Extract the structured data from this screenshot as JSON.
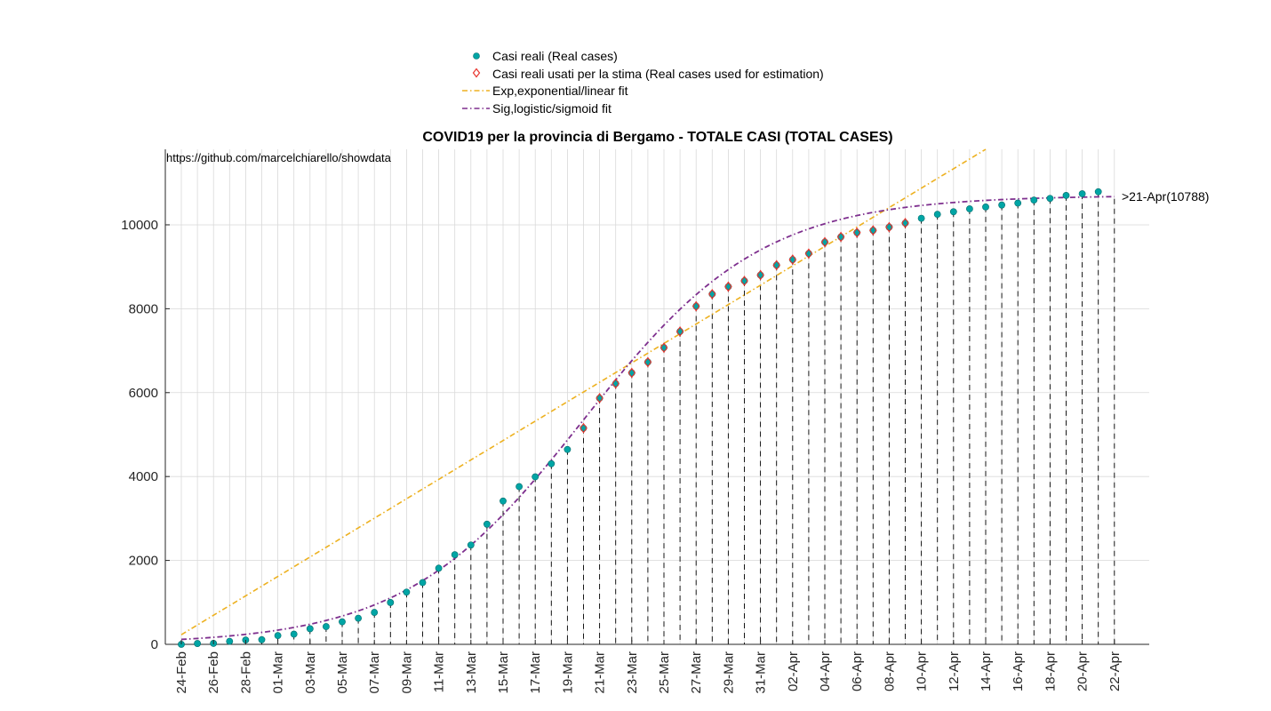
{
  "chart_data": {
    "type": "scatter",
    "title": "COVID19 per la provincia di Bergamo - TOTALE CASI (TOTAL CASES)",
    "source_text": "https://github.com/marcelchiarello/showdata",
    "xlabel": "",
    "ylabel": "",
    "ylim": [
      0,
      11800
    ],
    "y_ticks": [
      0,
      2000,
      4000,
      6000,
      8000,
      10000
    ],
    "x_tick_labels": [
      "24-Feb",
      "26-Feb",
      "28-Feb",
      "01-Mar",
      "03-Mar",
      "05-Mar",
      "07-Mar",
      "09-Mar",
      "11-Mar",
      "13-Mar",
      "15-Mar",
      "17-Mar",
      "19-Mar",
      "21-Mar",
      "23-Mar",
      "25-Mar",
      "27-Mar",
      "29-Mar",
      "31-Mar",
      "02-Apr",
      "04-Apr",
      "06-Apr",
      "08-Apr",
      "10-Apr",
      "12-Apr",
      "14-Apr",
      "16-Apr",
      "18-Apr",
      "20-Apr",
      "22-Apr"
    ],
    "dates": [
      "24-Feb",
      "25-Feb",
      "26-Feb",
      "27-Feb",
      "28-Feb",
      "29-Feb",
      "01-Mar",
      "02-Mar",
      "03-Mar",
      "04-Mar",
      "05-Mar",
      "06-Mar",
      "07-Mar",
      "08-Mar",
      "09-Mar",
      "10-Mar",
      "11-Mar",
      "12-Mar",
      "13-Mar",
      "14-Mar",
      "15-Mar",
      "16-Mar",
      "17-Mar",
      "18-Mar",
      "19-Mar",
      "20-Mar",
      "21-Mar",
      "22-Mar",
      "23-Mar",
      "24-Mar",
      "25-Mar",
      "26-Mar",
      "27-Mar",
      "28-Mar",
      "29-Mar",
      "30-Mar",
      "31-Mar",
      "01-Apr",
      "02-Apr",
      "03-Apr",
      "04-Apr",
      "05-Apr",
      "06-Apr",
      "07-Apr",
      "08-Apr",
      "09-Apr",
      "10-Apr",
      "11-Apr",
      "12-Apr",
      "13-Apr",
      "14-Apr",
      "15-Apr",
      "16-Apr",
      "17-Apr",
      "18-Apr",
      "19-Apr",
      "20-Apr",
      "21-Apr"
    ],
    "series": [
      {
        "name": "Casi reali (Real cases)",
        "marker": "circle",
        "color": "#00A5A5",
        "values": [
          0,
          20,
          23,
          72,
          103,
          110,
          209,
          243,
          372,
          423,
          537,
          623,
          761,
          997,
          1245,
          1472,
          1815,
          2136,
          2368,
          2864,
          3416,
          3760,
          3993,
          4305,
          4645,
          5154,
          5869,
          6216,
          6471,
          6728,
          7072,
          7458,
          8060,
          8349,
          8527,
          8664,
          8803,
          9039,
          9171,
          9315,
          9588,
          9712,
          9815,
          9868,
          9945,
          10042,
          10156,
          10251,
          10311,
          10380,
          10425,
          10472,
          10518,
          10590,
          10630,
          10700,
          10740,
          10788
        ]
      },
      {
        "name": "Casi reali usati per la stima (Real cases used for estimation)",
        "marker": "diamond",
        "color": "#E8352E",
        "values": [
          null,
          null,
          null,
          null,
          null,
          null,
          null,
          null,
          null,
          null,
          null,
          null,
          null,
          null,
          null,
          null,
          null,
          null,
          null,
          null,
          null,
          null,
          null,
          null,
          null,
          5154,
          5869,
          6216,
          6471,
          6728,
          7072,
          7458,
          8060,
          8349,
          8527,
          8664,
          8803,
          9039,
          9171,
          9315,
          9588,
          9712,
          9815,
          9868,
          9945,
          10042,
          null,
          null,
          null,
          null,
          null,
          null,
          null,
          null,
          null,
          null,
          null,
          null
        ]
      },
      {
        "name": "Exp,exponential/linear fit",
        "line": "dash-dot",
        "color": "#EDB120",
        "x_range": [
          "24-Feb",
          "14-Apr"
        ],
        "values_at_range": [
          230,
          11800
        ]
      },
      {
        "name": "Sig,logistic/sigmoid fit",
        "line": "dash-dot",
        "color": "#7E2F8E",
        "logistic": {
          "L": 10700,
          "k": 0.18,
          "x0_date": "20-Mar"
        },
        "x_range": [
          "24-Feb",
          "22-Apr"
        ]
      }
    ],
    "annotation": ">21-Apr(10788)",
    "legend_position": "top-center",
    "grid": true
  }
}
